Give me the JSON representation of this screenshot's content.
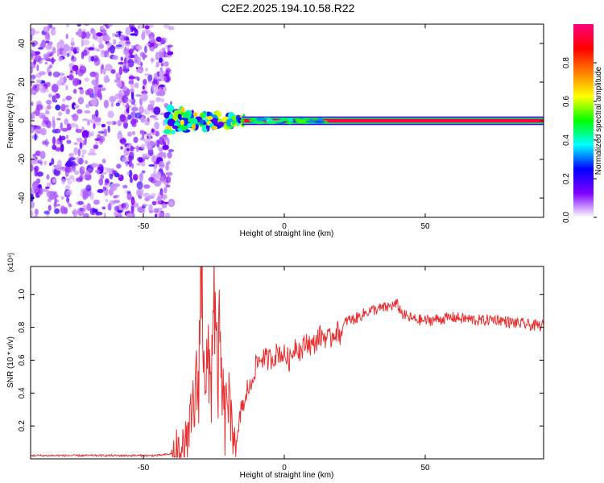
{
  "figure": {
    "title": "C2E2.2025.194.10.58.R22"
  },
  "colorbar": {
    "label": "Normalized spectral amplitude",
    "ticks": [
      "0.0",
      "0.2",
      "0.4",
      "0.6",
      "0.8"
    ],
    "colors": [
      "#ffffff",
      "#7f00ff",
      "#0000ff",
      "#00ffff",
      "#00ff00",
      "#ffff00",
      "#ff7f00",
      "#ff0000",
      "#ff007f"
    ]
  },
  "chart_data": [
    {
      "type": "heatmap",
      "title": "",
      "xlabel": "Height of straight line (km)",
      "ylabel": "Frequency (Hz)",
      "xlim": [
        -90,
        92
      ],
      "ylim": [
        -50,
        50
      ],
      "xticks": [
        "-50",
        "0",
        "50"
      ],
      "yticks": [
        "-40",
        "-20",
        "0",
        "20",
        "40"
      ],
      "colorbar_range": [
        0,
        1
      ],
      "regions": [
        {
          "x_range": [
            -90,
            -40
          ],
          "y_range": [
            -50,
            50
          ],
          "level": "low (0.05-0.2), speckled noise"
        },
        {
          "x_range": [
            -40,
            -15
          ],
          "y_range": [
            -5,
            5
          ],
          "level": "mixed (0.2-0.6), clustered near 0 Hz"
        },
        {
          "x_range": [
            -15,
            92
          ],
          "y_range": [
            -1.5,
            1.5
          ],
          "level": "high (~0.95), narrow band centered at 0 Hz"
        }
      ]
    },
    {
      "type": "line",
      "title": "",
      "xlabel": "Height of straight line (km)",
      "ylabel": "SNR (10 * v/v)",
      "scale_label": "(x10⁴)",
      "xlim": [
        -90,
        92
      ],
      "ylim": [
        0,
        1.17
      ],
      "xticks": [
        "-50",
        "0",
        "50"
      ],
      "yticks": [
        "0.2",
        "0.4",
        "0.6",
        "0.8",
        "1.0"
      ],
      "color": "#e83030",
      "series": [
        {
          "x": [
            -90,
            -60,
            -45,
            -40,
            -36,
            -34,
            -32,
            -30.5,
            -29.5,
            -28,
            -26,
            -25,
            -24,
            -23,
            -22,
            -21,
            -20,
            -19,
            -18,
            -17,
            -16,
            -15,
            -14,
            -13,
            -12,
            -11,
            -10,
            -8,
            -6,
            -4,
            -2,
            0,
            2,
            4,
            6,
            8,
            10,
            12,
            14,
            16,
            18,
            20,
            22,
            25,
            28,
            30,
            33,
            36,
            38,
            40,
            42,
            44,
            46,
            50,
            55,
            60,
            65,
            70,
            75,
            80,
            85,
            88,
            92
          ],
          "y": [
            0.02,
            0.02,
            0.02,
            0.03,
            0.05,
            0.1,
            0.35,
            0.45,
            1.17,
            0.55,
            0.45,
            1.13,
            0.5,
            0.65,
            0.4,
            0.2,
            0.45,
            0.15,
            0.25,
            0.05,
            0.2,
            0.35,
            0.3,
            0.45,
            0.42,
            0.52,
            0.57,
            0.62,
            0.6,
            0.62,
            0.65,
            0.63,
            0.6,
            0.7,
            0.65,
            0.72,
            0.68,
            0.74,
            0.75,
            0.72,
            0.78,
            0.76,
            0.84,
            0.85,
            0.88,
            0.9,
            0.91,
            0.92,
            0.93,
            0.94,
            0.88,
            0.86,
            0.85,
            0.84,
            0.85,
            0.86,
            0.85,
            0.84,
            0.85,
            0.83,
            0.82,
            0.81,
            0.81
          ]
        }
      ]
    }
  ]
}
